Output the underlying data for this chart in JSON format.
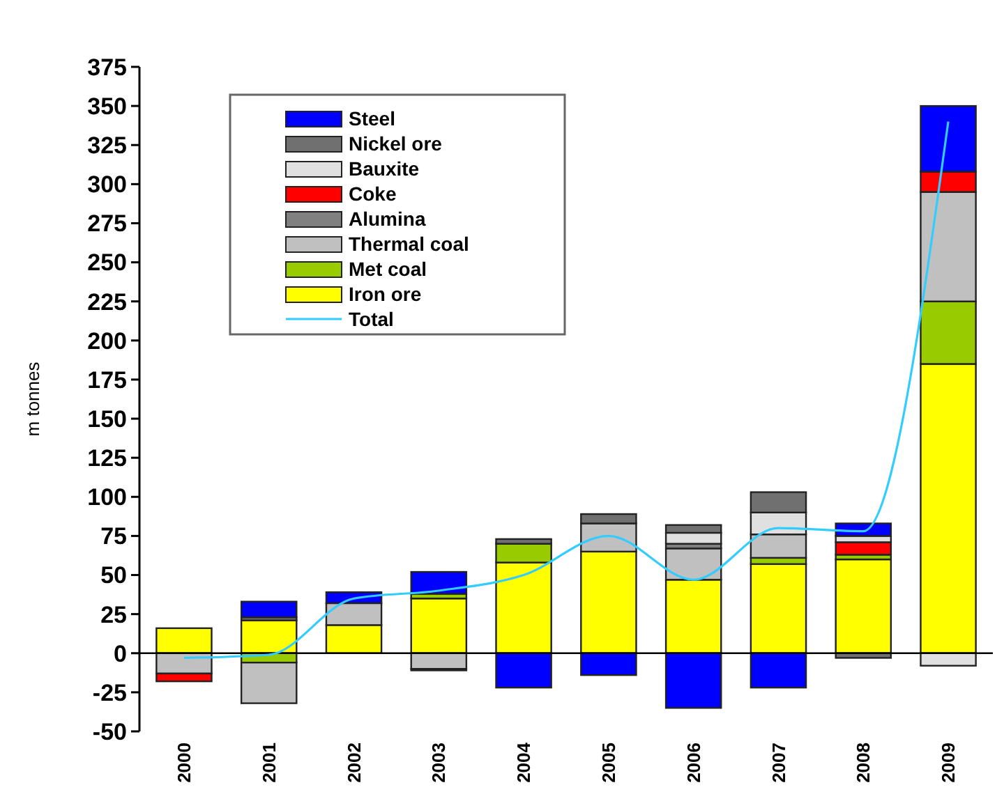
{
  "chart_data": {
    "type": "bar",
    "stacked": true,
    "ylabel": "m tonnes",
    "categories": [
      "2000",
      "2001",
      "2002",
      "2003",
      "2004",
      "2005",
      "2006",
      "2007",
      "2008",
      "2009"
    ],
    "series": [
      {
        "name": "Iron ore",
        "color": "#ffff00",
        "values": [
          16,
          21,
          18,
          35,
          58,
          65,
          47,
          57,
          60,
          185
        ]
      },
      {
        "name": "Met coal",
        "color": "#99cc00",
        "values": [
          null,
          -6,
          null,
          3,
          12,
          null,
          null,
          4,
          3,
          40
        ]
      },
      {
        "name": "Thermal coal",
        "color": "#c0c0c0",
        "values": [
          -13,
          -26,
          14,
          -10,
          null,
          18,
          20,
          15,
          null,
          70
        ]
      },
      {
        "name": "Alumina",
        "color": "#808080",
        "values": [
          null,
          null,
          null,
          null,
          null,
          null,
          3,
          null,
          null,
          null
        ]
      },
      {
        "name": "Coke",
        "color": "#ff0000",
        "values": [
          -5,
          null,
          null,
          null,
          null,
          null,
          null,
          null,
          8,
          13
        ]
      },
      {
        "name": "Bauxite",
        "color": "#e0e0e0",
        "values": [
          null,
          null,
          null,
          null,
          null,
          null,
          7,
          14,
          4,
          -8
        ]
      },
      {
        "name": "Nickel ore",
        "color": "#707070",
        "values": [
          null,
          2,
          null,
          -1,
          3,
          6,
          5,
          13,
          -3,
          null
        ]
      },
      {
        "name": "Steel",
        "color": "#0000ff",
        "values": [
          null,
          10,
          7,
          14,
          -22,
          -14,
          -35,
          -22,
          8,
          42
        ]
      },
      {
        "name": "Total",
        "type": "line",
        "color": "#33ccff",
        "values": [
          -3,
          -1,
          35,
          40,
          50,
          75,
          47,
          80,
          78,
          340
        ]
      }
    ],
    "ylim": [
      -50,
      375
    ],
    "yticks": [
      -50,
      -25,
      0,
      25,
      50,
      75,
      100,
      125,
      150,
      175,
      200,
      225,
      250,
      275,
      300,
      325,
      350,
      375
    ],
    "legend": "top left"
  }
}
